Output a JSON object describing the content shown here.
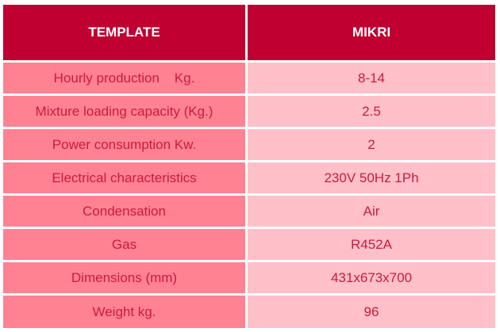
{
  "table": {
    "headers": {
      "model_label": "TEMPLATE",
      "model_name": "MIKRI"
    },
    "rows": [
      {
        "label": "Hourly production    Kg.",
        "value": "8-14"
      },
      {
        "label": "Mixture loading capacity (Kg.)",
        "value": "2.5"
      },
      {
        "label": "Power consumption Kw.",
        "value": "2"
      },
      {
        "label": "Electrical characteristics",
        "value": "230V 50Hz 1Ph"
      },
      {
        "label": "Condensation",
        "value": "Air"
      },
      {
        "label": "Gas",
        "value": "R452A"
      },
      {
        "label": "Dimensions (mm)",
        "value": "431x673x700"
      },
      {
        "label": "Weight kg.",
        "value": "96"
      }
    ]
  },
  "colors": {
    "header_bg": "#bf0030",
    "header_text": "#ffffff",
    "label_bg": "#ff8292",
    "value_bg": "#ffc0ca",
    "cell_text": "#cc1a3c"
  }
}
